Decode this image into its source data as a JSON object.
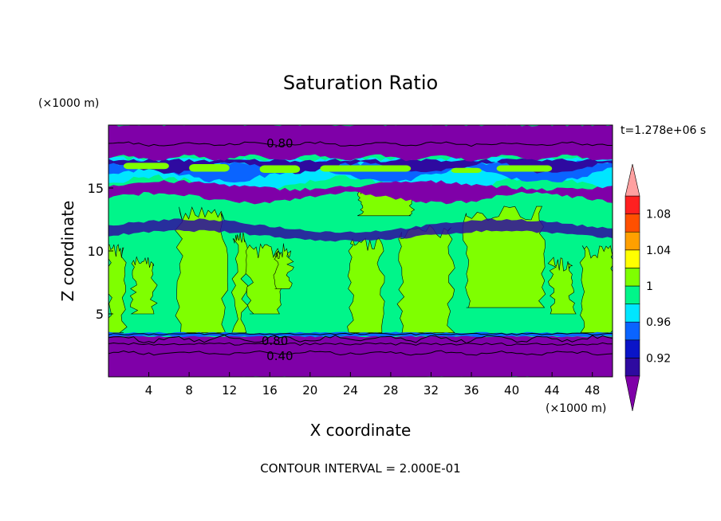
{
  "chart_data": {
    "type": "heatmap",
    "title": "Saturation Ratio",
    "xlabel": "X coordinate",
    "ylabel": "Z coordinate",
    "x_unit": "(×1000 m)",
    "y_unit": "(×1000 m)",
    "time_label": "t=1.278e+06 s",
    "footer": "CONTOUR INTERVAL = 2.000E-01",
    "xlim": [
      0,
      50
    ],
    "ylim": [
      0,
      20
    ],
    "xticks": [
      4,
      8,
      12,
      16,
      20,
      24,
      28,
      32,
      36,
      40,
      44,
      48
    ],
    "yticks": [
      5,
      10,
      15
    ],
    "contour_labels": [
      {
        "text": "0.80",
        "x": 17,
        "y": 18.6
      },
      {
        "text": "0.80",
        "x": 16.5,
        "y": 2.9
      },
      {
        "text": "0.40",
        "x": 17,
        "y": 1.7
      }
    ],
    "colorbar": {
      "levels": [
        "0.92",
        "",
        "0.96",
        "",
        "1",
        "",
        "1.04",
        "",
        "1.08"
      ],
      "colors": [
        "#7f00a8",
        "#2e0aa0",
        "#0a14c8",
        "#0a64ff",
        "#00e6ff",
        "#00f58a",
        "#7fff00",
        "#ffff00",
        "#ffa000",
        "#ff5000",
        "#ff2020",
        "#ffa0a0"
      ]
    },
    "fields": {
      "background": "#00f58a",
      "low_dry": "#7f00a8",
      "mid_dry": "#2e0aa0",
      "blue": "#0a64ff",
      "cyan": "#00e6ff",
      "super": "#7fff00"
    }
  }
}
